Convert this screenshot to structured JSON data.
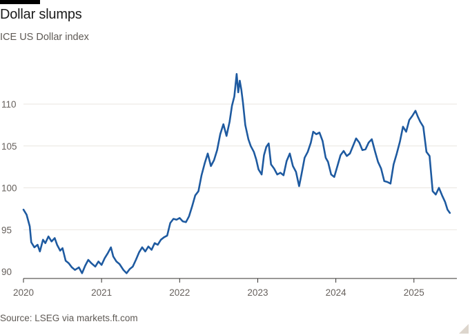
{
  "title": "Dollar slumps",
  "subtitle": "ICE US Dollar index",
  "source": "Source: LSEG via markets.ft.com",
  "colors": {
    "line": "#1e5aa0",
    "grid": "#e9e5df",
    "axis": "#33302e",
    "text": "#66605c"
  },
  "chart_data": {
    "type": "line",
    "title": "Dollar slumps",
    "subtitle": "ICE US Dollar index",
    "xlabel": "",
    "ylabel": "",
    "xlim": [
      2020.0,
      2025.55
    ],
    "ylim": [
      90,
      114
    ],
    "yticks": [
      90,
      95,
      100,
      105,
      110
    ],
    "xticks": [
      2020,
      2021,
      2022,
      2023,
      2024,
      2025
    ],
    "xtick_labels": [
      "2020",
      "2021",
      "2022",
      "2023",
      "2024",
      "2025"
    ],
    "grid": "horizontal",
    "series": [
      {
        "name": "",
        "points": [
          [
            2020.0,
            97.4
          ],
          [
            2020.04,
            96.8
          ],
          [
            2020.08,
            95.4
          ],
          [
            2020.1,
            93.5
          ],
          [
            2020.14,
            92.9
          ],
          [
            2020.18,
            93.2
          ],
          [
            2020.21,
            92.4
          ],
          [
            2020.25,
            93.8
          ],
          [
            2020.28,
            93.4
          ],
          [
            2020.32,
            94.2
          ],
          [
            2020.36,
            93.6
          ],
          [
            2020.4,
            94.0
          ],
          [
            2020.43,
            93.2
          ],
          [
            2020.47,
            92.5
          ],
          [
            2020.5,
            92.8
          ],
          [
            2020.54,
            91.3
          ],
          [
            2020.58,
            91.0
          ],
          [
            2020.62,
            90.5
          ],
          [
            2020.66,
            90.2
          ],
          [
            2020.71,
            90.5
          ],
          [
            2020.75,
            89.8
          ],
          [
            2020.79,
            90.7
          ],
          [
            2020.83,
            91.4
          ],
          [
            2020.87,
            91.0
          ],
          [
            2020.92,
            90.6
          ],
          [
            2020.96,
            91.2
          ],
          [
            2021.0,
            90.8
          ],
          [
            2021.04,
            91.6
          ],
          [
            2021.08,
            92.2
          ],
          [
            2021.12,
            92.9
          ],
          [
            2021.15,
            91.8
          ],
          [
            2021.19,
            91.2
          ],
          [
            2021.23,
            90.9
          ],
          [
            2021.28,
            90.2
          ],
          [
            2021.32,
            89.8
          ],
          [
            2021.36,
            90.3
          ],
          [
            2021.4,
            90.6
          ],
          [
            2021.44,
            91.4
          ],
          [
            2021.48,
            92.3
          ],
          [
            2021.52,
            92.9
          ],
          [
            2021.56,
            92.4
          ],
          [
            2021.6,
            93.0
          ],
          [
            2021.64,
            92.6
          ],
          [
            2021.68,
            93.4
          ],
          [
            2021.72,
            93.2
          ],
          [
            2021.76,
            93.8
          ],
          [
            2021.8,
            94.1
          ],
          [
            2021.84,
            94.3
          ],
          [
            2021.88,
            95.8
          ],
          [
            2021.92,
            96.3
          ],
          [
            2021.96,
            96.2
          ],
          [
            2022.0,
            96.4
          ],
          [
            2022.04,
            96.0
          ],
          [
            2022.08,
            95.9
          ],
          [
            2022.12,
            96.6
          ],
          [
            2022.16,
            97.8
          ],
          [
            2022.2,
            99.1
          ],
          [
            2022.24,
            99.6
          ],
          [
            2022.28,
            101.5
          ],
          [
            2022.32,
            102.9
          ],
          [
            2022.36,
            104.1
          ],
          [
            2022.4,
            102.6
          ],
          [
            2022.44,
            103.3
          ],
          [
            2022.48,
            104.5
          ],
          [
            2022.52,
            106.4
          ],
          [
            2022.56,
            107.6
          ],
          [
            2022.6,
            106.2
          ],
          [
            2022.64,
            107.9
          ],
          [
            2022.67,
            109.8
          ],
          [
            2022.7,
            110.9
          ],
          [
            2022.73,
            113.6
          ],
          [
            2022.75,
            111.4
          ],
          [
            2022.77,
            112.8
          ],
          [
            2022.79,
            111.7
          ],
          [
            2022.81,
            110.2
          ],
          [
            2022.84,
            107.5
          ],
          [
            2022.88,
            105.8
          ],
          [
            2022.91,
            105.0
          ],
          [
            2022.95,
            104.3
          ],
          [
            2022.98,
            103.4
          ],
          [
            2023.01,
            102.2
          ],
          [
            2023.05,
            101.6
          ],
          [
            2023.08,
            103.9
          ],
          [
            2023.11,
            104.9
          ],
          [
            2023.14,
            105.3
          ],
          [
            2023.17,
            102.8
          ],
          [
            2023.21,
            102.3
          ],
          [
            2023.25,
            101.6
          ],
          [
            2023.29,
            101.8
          ],
          [
            2023.33,
            101.5
          ],
          [
            2023.37,
            103.2
          ],
          [
            2023.41,
            104.1
          ],
          [
            2023.45,
            102.6
          ],
          [
            2023.49,
            101.9
          ],
          [
            2023.53,
            100.2
          ],
          [
            2023.56,
            101.6
          ],
          [
            2023.6,
            103.6
          ],
          [
            2023.64,
            104.3
          ],
          [
            2023.68,
            105.4
          ],
          [
            2023.71,
            106.7
          ],
          [
            2023.75,
            106.4
          ],
          [
            2023.79,
            106.6
          ],
          [
            2023.83,
            105.6
          ],
          [
            2023.87,
            103.6
          ],
          [
            2023.9,
            103.1
          ],
          [
            2023.94,
            101.6
          ],
          [
            2023.98,
            101.3
          ],
          [
            2024.02,
            102.6
          ],
          [
            2024.06,
            103.9
          ],
          [
            2024.1,
            104.4
          ],
          [
            2024.14,
            103.8
          ],
          [
            2024.18,
            104.1
          ],
          [
            2024.22,
            105.0
          ],
          [
            2024.26,
            105.9
          ],
          [
            2024.3,
            105.4
          ],
          [
            2024.34,
            104.5
          ],
          [
            2024.38,
            104.6
          ],
          [
            2024.42,
            105.4
          ],
          [
            2024.46,
            105.8
          ],
          [
            2024.5,
            104.4
          ],
          [
            2024.54,
            103.1
          ],
          [
            2024.58,
            102.3
          ],
          [
            2024.62,
            100.8
          ],
          [
            2024.66,
            100.7
          ],
          [
            2024.7,
            100.5
          ],
          [
            2024.74,
            102.8
          ],
          [
            2024.78,
            104.1
          ],
          [
            2024.82,
            105.5
          ],
          [
            2024.86,
            107.3
          ],
          [
            2024.9,
            106.7
          ],
          [
            2024.94,
            108.1
          ],
          [
            2024.98,
            108.6
          ],
          [
            2025.02,
            109.2
          ],
          [
            2025.05,
            108.5
          ],
          [
            2025.08,
            107.9
          ],
          [
            2025.12,
            107.3
          ],
          [
            2025.16,
            104.3
          ],
          [
            2025.2,
            103.8
          ],
          [
            2025.24,
            99.6
          ],
          [
            2025.28,
            99.2
          ],
          [
            2025.32,
            100.0
          ],
          [
            2025.36,
            99.1
          ],
          [
            2025.4,
            98.3
          ],
          [
            2025.43,
            97.4
          ],
          [
            2025.46,
            97.0
          ]
        ]
      }
    ]
  }
}
